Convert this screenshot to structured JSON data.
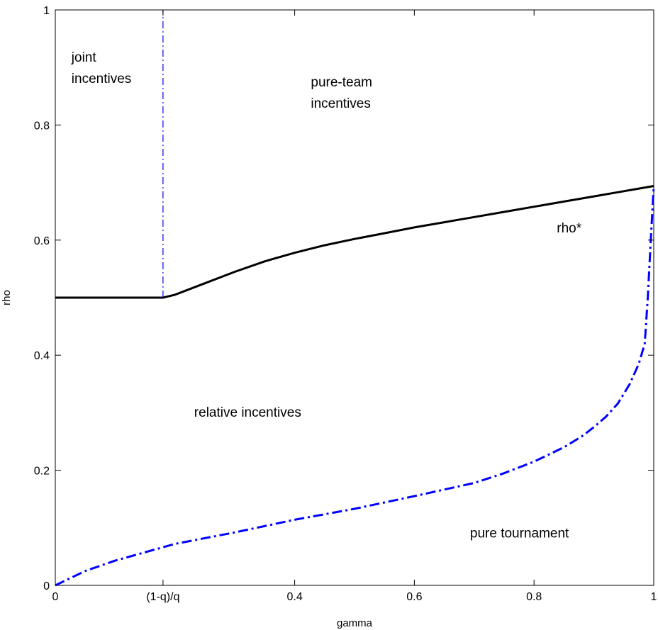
{
  "chart_data": {
    "type": "line",
    "title": "",
    "xlabel": "gamma",
    "ylabel": "rho",
    "xlim": [
      0,
      1
    ],
    "ylim": [
      0,
      1
    ],
    "grid": false,
    "x_ticks": [
      {
        "value": 0,
        "label": "0"
      },
      {
        "value": 0.18,
        "label": "(1-q)/q"
      },
      {
        "value": 0.4,
        "label": "0.4"
      },
      {
        "value": 0.6,
        "label": "0.6"
      },
      {
        "value": 0.8,
        "label": "0.8"
      },
      {
        "value": 1,
        "label": "1"
      }
    ],
    "y_ticks": [
      {
        "value": 0,
        "label": "0"
      },
      {
        "value": 0.2,
        "label": "0.2"
      },
      {
        "value": 0.4,
        "label": "0.4"
      },
      {
        "value": 0.6,
        "label": "0.6"
      },
      {
        "value": 0.8,
        "label": "0.8"
      },
      {
        "value": 1,
        "label": "1"
      }
    ],
    "series": [
      {
        "name": "rho*",
        "color": "#000000",
        "style": "solid",
        "x": [
          0,
          0.05,
          0.1,
          0.15,
          0.18,
          0.2,
          0.25,
          0.3,
          0.35,
          0.4,
          0.45,
          0.5,
          0.55,
          0.6,
          0.65,
          0.7,
          0.75,
          0.8,
          0.85,
          0.9,
          0.95,
          1.0
        ],
        "y": [
          0.5,
          0.5,
          0.5,
          0.5,
          0.5,
          0.505,
          0.525,
          0.545,
          0.563,
          0.578,
          0.591,
          0.602,
          0.612,
          0.622,
          0.631,
          0.64,
          0.649,
          0.658,
          0.667,
          0.676,
          0.685,
          0.694
        ]
      },
      {
        "color": "#0000ff",
        "style": "dashdot",
        "x": [
          0,
          0.05,
          0.1,
          0.2,
          0.3,
          0.4,
          0.5,
          0.6,
          0.7,
          0.75,
          0.8,
          0.85,
          0.88,
          0.9,
          0.92,
          0.94,
          0.96,
          0.975,
          0.985,
          0.99,
          0.995,
          1.0
        ],
        "y": [
          0,
          0.025,
          0.043,
          0.072,
          0.092,
          0.114,
          0.133,
          0.155,
          0.178,
          0.195,
          0.215,
          0.24,
          0.259,
          0.275,
          0.293,
          0.316,
          0.35,
          0.385,
          0.42,
          0.5,
          0.6,
          0.694
        ]
      },
      {
        "color": "#0000ff",
        "style": "dashdot",
        "x": [
          0.18,
          0.18
        ],
        "y": [
          0.5,
          1.0
        ]
      }
    ],
    "annotations": [
      {
        "text": "joint",
        "x": 0.027,
        "y": 0.91
      },
      {
        "text": "incentives",
        "x": 0.027,
        "y": 0.873
      },
      {
        "text": "pure-team",
        "x": 0.427,
        "y": 0.867
      },
      {
        "text": "incentives",
        "x": 0.427,
        "y": 0.83
      },
      {
        "text": "rho*",
        "x": 0.838,
        "y": 0.613
      },
      {
        "text": "relative incentives",
        "x": 0.232,
        "y": 0.293
      },
      {
        "text": "pure tournament",
        "x": 0.693,
        "y": 0.083
      }
    ]
  }
}
